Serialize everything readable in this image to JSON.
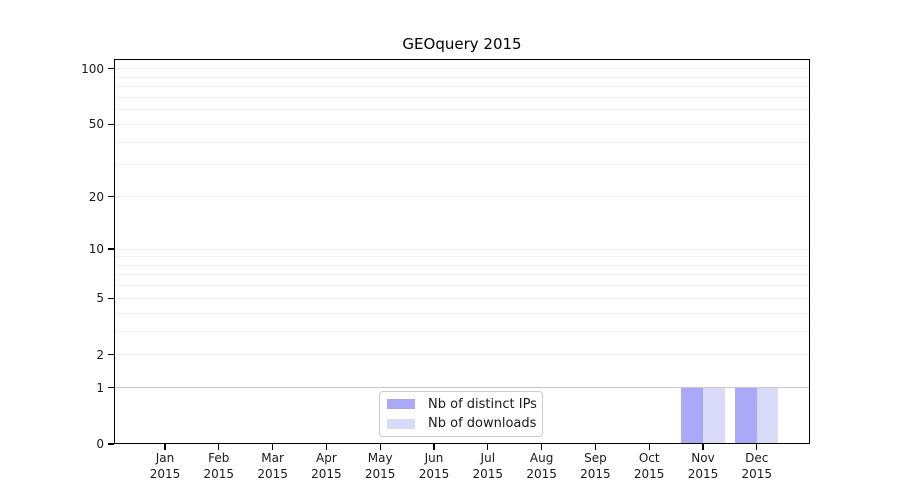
{
  "chart_data": {
    "type": "bar",
    "title": "GEOquery 2015",
    "categories": [
      "Jan",
      "Feb",
      "Mar",
      "Apr",
      "May",
      "Jun",
      "Jul",
      "Aug",
      "Sep",
      "Oct",
      "Nov",
      "Dec"
    ],
    "year_label": "2015",
    "series": [
      {
        "name": "Nb of distinct IPs",
        "color": "#a9a9f7",
        "values": [
          0,
          0,
          0,
          0,
          0,
          0,
          0,
          0,
          0,
          0,
          1,
          1
        ]
      },
      {
        "name": "Nb of downloads",
        "color": "#dadaf9",
        "values": [
          0,
          0,
          0,
          0,
          0,
          0,
          0,
          0,
          0,
          0,
          1,
          1
        ]
      }
    ],
    "yscale": "log1p",
    "ylim": [
      0,
      113
    ],
    "yticks": [
      0,
      1,
      2,
      5,
      10,
      20,
      50,
      100
    ],
    "minor_yticks": [
      3,
      4,
      6,
      7,
      8,
      9,
      30,
      40,
      60,
      70,
      80,
      90
    ],
    "grid": true,
    "grid_color": "#f0f0f0",
    "unit_line_color": "#c9c9c9",
    "legend_position": "inside lower center-left"
  }
}
